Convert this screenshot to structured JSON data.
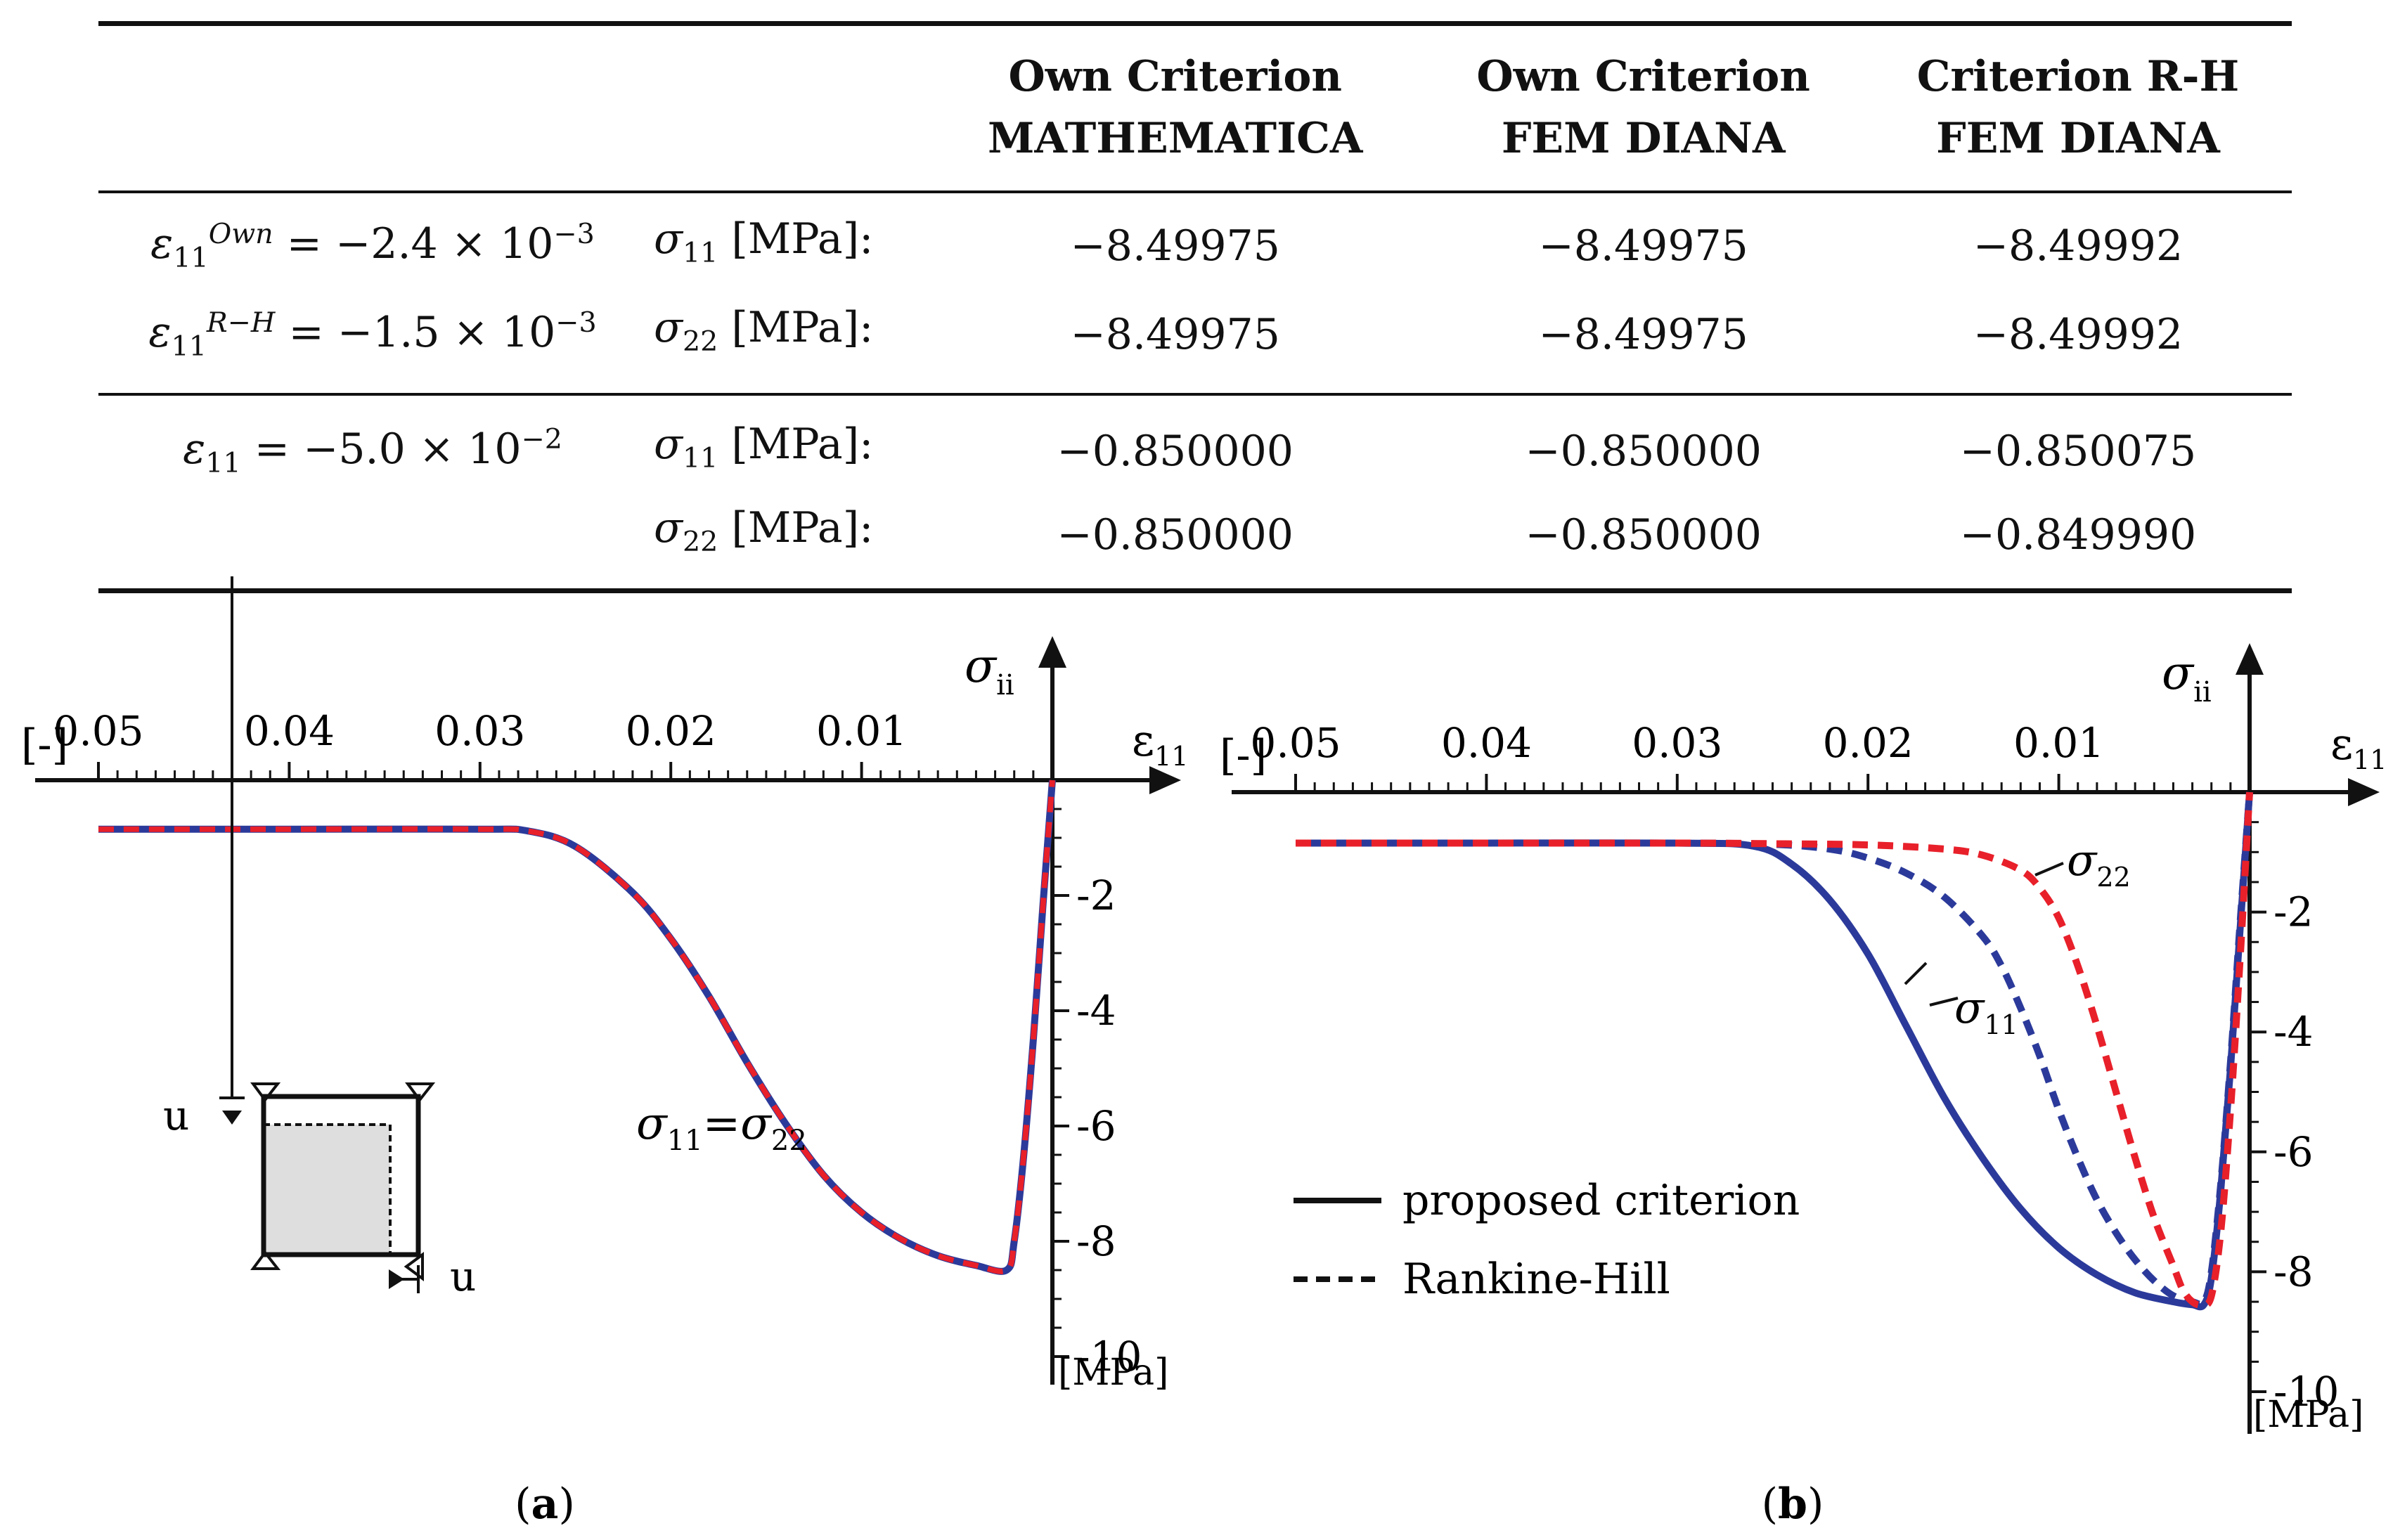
{
  "table": {
    "headers": [
      {
        "line1": "Own Criterion",
        "line2": "MATHEMATICA"
      },
      {
        "line1": "Own Criterion",
        "line2": "FEM DIANA"
      },
      {
        "line1": "Criterion R-H",
        "line2": "FEM DIANA"
      }
    ],
    "group1": {
      "cond1": {
        "sym": "ε",
        "sub": "11",
        "sup": "Own",
        "rest": " = −2.4 × 10",
        "exp": "−3"
      },
      "cond2": {
        "sym": "ε",
        "sub": "11",
        "sup": "R−H",
        "rest": " = −1.5 × 10",
        "exp": "−3"
      },
      "rows": [
        {
          "var": "σ",
          "sub": "11",
          "unit": " [MPa]:",
          "values": [
            "−8.49975",
            "−8.49975",
            "−8.49992"
          ]
        },
        {
          "var": "σ",
          "sub": "22",
          "unit": " [MPa]:",
          "values": [
            "−8.49975",
            "−8.49975",
            "−8.49992"
          ]
        }
      ]
    },
    "group2": {
      "cond": {
        "sym": "ε",
        "sub": "11",
        "rest": " = −5.0 × 10",
        "exp": "−2"
      },
      "rows": [
        {
          "var": "σ",
          "sub": "11",
          "unit": " [MPa]:",
          "values": [
            "−0.850000",
            "−0.850000",
            "−0.850075"
          ]
        },
        {
          "var": "σ",
          "sub": "22",
          "unit": " [MPa]:",
          "values": [
            "−0.850000",
            "−0.850000",
            "−0.849990"
          ]
        }
      ]
    }
  },
  "colors": {
    "blue": "#2b3a9a",
    "red": "#e8202a",
    "ink": "#111111"
  },
  "chart_data": [
    {
      "type": "line",
      "panel_label": "a",
      "xlim": [
        0.05,
        0.0
      ],
      "ylim": [
        0,
        -10
      ],
      "x_ticks": [
        "0.05",
        "0.04",
        "0.03",
        "0.02",
        "0.01"
      ],
      "y_ticks": [
        "-2",
        "-4",
        "-6",
        "-8",
        "-10"
      ],
      "x_unit": "[-]",
      "x_axis_label": {
        "sym": "ε",
        "sub": "11"
      },
      "y_axis_label": {
        "sym": "σ",
        "sub": "ii"
      },
      "y_unit": "[MPa]",
      "annotation": {
        "sym1": "σ",
        "sub1": "11",
        "eq": "=",
        "sym2": "σ",
        "sub2": "22"
      },
      "inset_labels": [
        "u",
        "u"
      ],
      "series": [
        {
          "name": "σ11 = σ22 (proposed)",
          "style": "solid",
          "color": "blue",
          "x": [
            0.05,
            0.04,
            0.03,
            0.0275,
            0.025,
            0.022,
            0.02,
            0.018,
            0.016,
            0.014,
            0.012,
            0.01,
            0.008,
            0.006,
            0.004,
            0.0024,
            0.002,
            0.0015,
            0.001,
            0.0005,
            0.0
          ],
          "y": [
            -0.85,
            -0.85,
            -0.85,
            -0.88,
            -1.15,
            -1.95,
            -2.75,
            -3.75,
            -4.9,
            -5.95,
            -6.85,
            -7.5,
            -7.95,
            -8.25,
            -8.42,
            -8.5,
            -8.0,
            -6.5,
            -4.5,
            -2.2,
            0.0
          ]
        },
        {
          "name": "σ11 = σ22 (Rankine-Hill)",
          "style": "dashed",
          "color": "red",
          "x": [
            0.05,
            0.04,
            0.03,
            0.0275,
            0.025,
            0.022,
            0.02,
            0.018,
            0.016,
            0.014,
            0.012,
            0.01,
            0.008,
            0.006,
            0.004,
            0.0024,
            0.002,
            0.0015,
            0.001,
            0.0005,
            0.0
          ],
          "y": [
            -0.85,
            -0.85,
            -0.85,
            -0.88,
            -1.15,
            -1.95,
            -2.75,
            -3.75,
            -4.9,
            -5.95,
            -6.85,
            -7.5,
            -7.95,
            -8.25,
            -8.42,
            -8.5,
            -8.0,
            -6.5,
            -4.5,
            -2.2,
            0.0
          ]
        }
      ]
    },
    {
      "type": "line",
      "panel_label": "b",
      "xlim": [
        0.05,
        0.0
      ],
      "ylim": [
        0,
        -10
      ],
      "x_ticks": [
        "0.05",
        "0.04",
        "0.03",
        "0.02",
        "0.01"
      ],
      "y_ticks": [
        "-2",
        "-4",
        "-6",
        "-8",
        "-10"
      ],
      "x_unit": "[-]",
      "x_axis_label": {
        "sym": "ε",
        "sub": "11"
      },
      "y_axis_label": {
        "sym": "σ",
        "sub": "ii"
      },
      "y_unit": "[MPa]",
      "label_s22": {
        "sym": "σ",
        "sub": "22"
      },
      "label_s11": {
        "sym": "σ",
        "sub": "11"
      },
      "legend": [
        {
          "label": "proposed criterion",
          "style": "solid"
        },
        {
          "label": "Rankine-Hill",
          "style": "dashed"
        }
      ],
      "series": [
        {
          "name": "proposed criterion",
          "style": "solid",
          "color": "blue",
          "x": [
            0.05,
            0.04,
            0.03,
            0.026,
            0.024,
            0.022,
            0.02,
            0.018,
            0.016,
            0.014,
            0.012,
            0.01,
            0.008,
            0.006,
            0.004,
            0.003,
            0.0024,
            0.002,
            0.0015,
            0.001,
            0.0005,
            0.0
          ],
          "y": [
            -0.85,
            -0.85,
            -0.85,
            -0.9,
            -1.2,
            -1.8,
            -2.7,
            -3.9,
            -5.1,
            -6.1,
            -6.95,
            -7.6,
            -8.05,
            -8.35,
            -8.5,
            -8.55,
            -8.55,
            -8.1,
            -6.6,
            -4.6,
            -2.3,
            0.0
          ]
        },
        {
          "name": "Rankine-Hill σ11",
          "style": "dashed",
          "color": "blue",
          "x": [
            0.05,
            0.04,
            0.03,
            0.025,
            0.022,
            0.02,
            0.018,
            0.016,
            0.014,
            0.013,
            0.012,
            0.011,
            0.01,
            0.009,
            0.008,
            0.007,
            0.006,
            0.005,
            0.004,
            0.003,
            0.0024,
            0.002,
            0.0015,
            0.001,
            0.0005,
            0.0
          ],
          "y": [
            -0.85,
            -0.85,
            -0.85,
            -0.87,
            -0.95,
            -1.1,
            -1.35,
            -1.75,
            -2.4,
            -2.9,
            -3.6,
            -4.4,
            -5.3,
            -6.1,
            -6.8,
            -7.35,
            -7.8,
            -8.15,
            -8.4,
            -8.5,
            -8.5,
            -8.0,
            -6.5,
            -4.5,
            -2.2,
            0.0
          ]
        },
        {
          "name": "Rankine-Hill σ22",
          "style": "dashed",
          "color": "red",
          "x": [
            0.05,
            0.04,
            0.03,
            0.025,
            0.02,
            0.016,
            0.014,
            0.012,
            0.011,
            0.01,
            0.009,
            0.008,
            0.007,
            0.006,
            0.005,
            0.004,
            0.0035,
            0.003,
            0.0025,
            0.002,
            0.0015,
            0.001,
            0.0005,
            0.0
          ],
          "y": [
            -0.85,
            -0.85,
            -0.85,
            -0.86,
            -0.88,
            -0.95,
            -1.05,
            -1.3,
            -1.6,
            -2.1,
            -2.9,
            -3.9,
            -5.0,
            -6.1,
            -7.1,
            -7.9,
            -8.3,
            -8.5,
            -8.55,
            -8.4,
            -7.3,
            -5.3,
            -2.8,
            0.0
          ]
        }
      ]
    }
  ]
}
